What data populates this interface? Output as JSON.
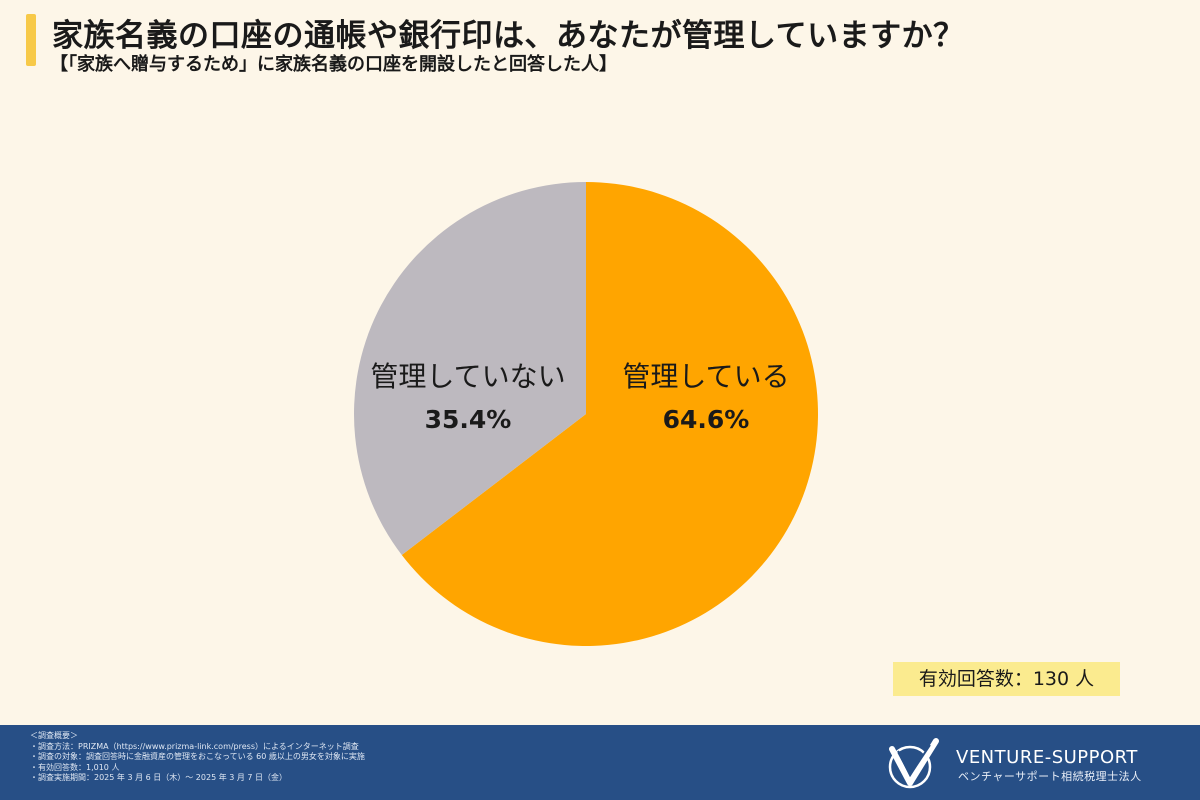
{
  "header": {
    "title": "家族名義の口座の通帳や銀行印は、あなたが管理していますか？",
    "subtitle": "【「家族へ贈与するため」に家族名義の口座を開設したと回答した人】"
  },
  "chart_data": {
    "type": "pie",
    "slices": [
      {
        "label": "管理している",
        "value": 64.6,
        "value_label": "64.6%",
        "color": "#ffa500"
      },
      {
        "label": "管理していない",
        "value": 35.4,
        "value_label": "35.4%",
        "color": "#bdb9bf"
      }
    ],
    "start": "12 o'clock",
    "direction": "clockwise"
  },
  "respondents": {
    "label": "有効回答数：130 人"
  },
  "footer": {
    "notes": [
      "＜調査概要＞",
      "・調査方法：PRIZMA（https://www.prizma-link.com/press）によるインターネット調査",
      "・調査の対象：調査回答時に金融資産の管理をおこなっている 60 歳以上の男女を対象に実施",
      "・有効回答数：1,010 人",
      "・調査実施期間：2025 年 3 月 6 日（木）～ 2025 年 3 月 7 日（金）"
    ],
    "brand": "VENTURE-SUPPORT",
    "brand_sub": "ベンチャーサポート相続税理士法人"
  }
}
